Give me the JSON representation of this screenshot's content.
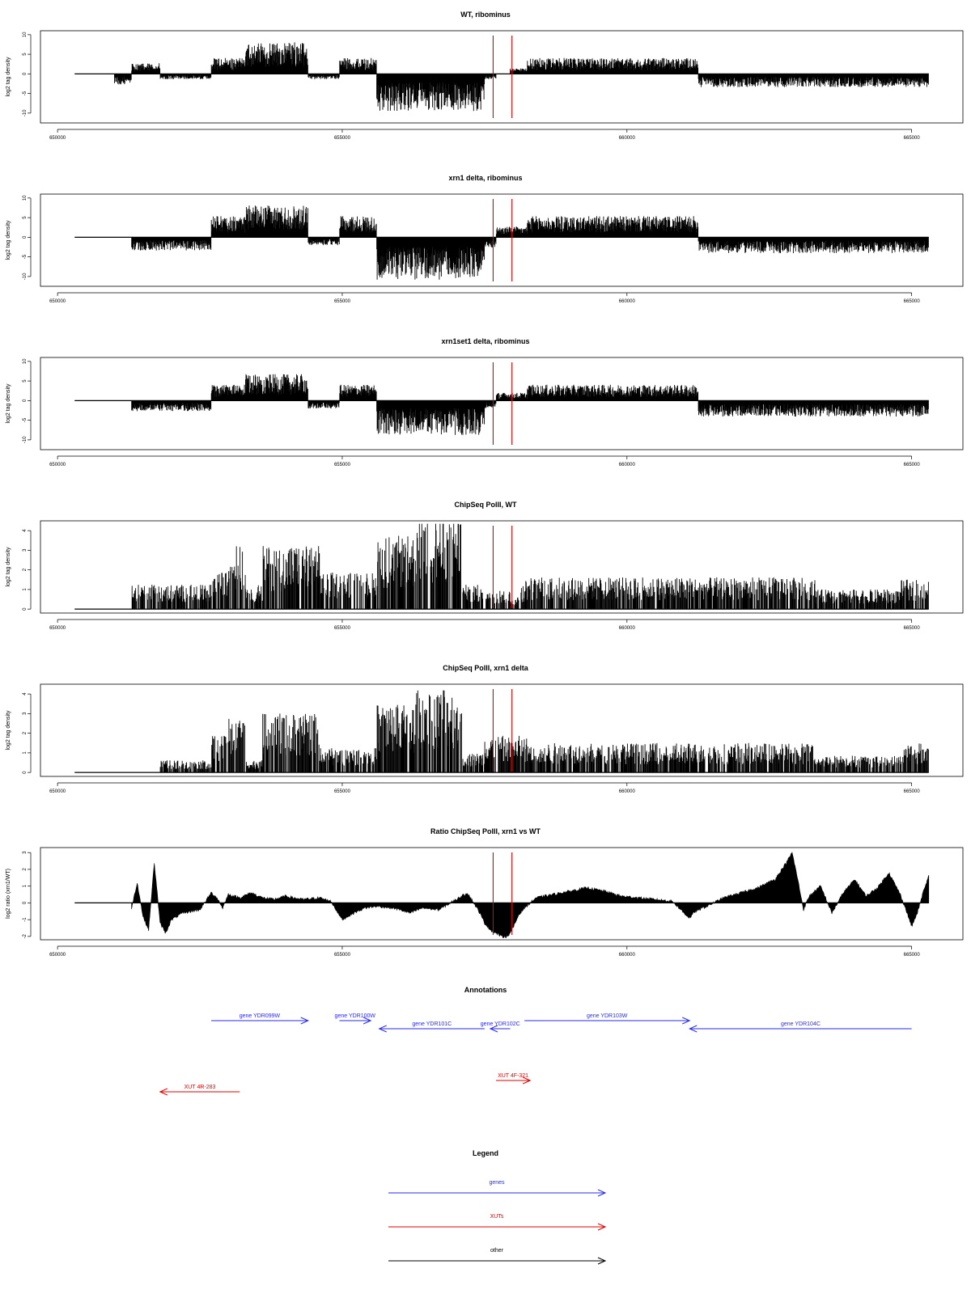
{
  "figure": {
    "xaxis_ticks": [
      "650000",
      "655000",
      "660000",
      "665000"
    ],
    "xaxis_tick_values": [
      650000,
      655000,
      660000,
      665000
    ],
    "xlim": [
      649700,
      665900
    ],
    "data_range": [
      650300,
      665300
    ],
    "marker_lines_x": [
      657650,
      657980
    ],
    "marker_color": "#e00000",
    "bar_color": "#000000",
    "gene_color": "#2a2aee",
    "xut_color": "#e00000",
    "other_color": "#000000"
  },
  "chart_data": [
    {
      "type": "bar",
      "title": "WT, ribominus",
      "ylabel": "log2 tag density",
      "ylim": [
        -12.5,
        11
      ],
      "yticks": [
        -10,
        -5,
        0,
        5,
        10
      ],
      "ytick_labels": [
        "-10",
        "-5",
        "0",
        "5",
        "10"
      ],
      "baseline": 0,
      "signal_profile": {
        "x_start": [
          650300,
          651000,
          651300,
          651800,
          652700,
          653300,
          654400,
          654950,
          655600,
          657500,
          657700,
          657950,
          658250,
          661250,
          665300
        ],
        "x_end": [
          651000,
          651300,
          651800,
          652700,
          653300,
          654400,
          654950,
          655600,
          657500,
          657700,
          657950,
          658250,
          661250,
          665300,
          665300
        ],
        "values": [
          0,
          -2,
          2,
          -1,
          3,
          6,
          -1,
          3,
          -7,
          -1,
          0,
          1,
          3,
          -2.5,
          0
        ]
      }
    },
    {
      "type": "bar",
      "title": "xrn1 delta, ribominus",
      "ylabel": "log2 tag density",
      "ylim": [
        -12.5,
        11
      ],
      "yticks": [
        -10,
        -5,
        0,
        5,
        10
      ],
      "ytick_labels": [
        "-10",
        "-5",
        "0",
        "5",
        "10"
      ],
      "baseline": 0,
      "signal_profile": {
        "x_start": [
          650300,
          651300,
          652700,
          653300,
          654400,
          654950,
          655600,
          657500,
          657700,
          658250,
          661250
        ],
        "x_end": [
          651300,
          652700,
          653300,
          654400,
          654950,
          655600,
          657500,
          657700,
          658250,
          661250,
          665300
        ],
        "values": [
          0,
          -2.5,
          4,
          6,
          -1.5,
          4,
          -8,
          -2,
          2,
          4,
          -3
        ]
      }
    },
    {
      "type": "bar",
      "title": "xrn1set1 delta, ribominus",
      "ylabel": "log2 tag density",
      "ylim": [
        -12.5,
        11
      ],
      "yticks": [
        -10,
        -5,
        0,
        5,
        10
      ],
      "ytick_labels": [
        "-10",
        "-5",
        "0",
        "5",
        "10"
      ],
      "baseline": 0,
      "signal_profile": {
        "x_start": [
          650300,
          651300,
          652700,
          653300,
          654400,
          654950,
          655600,
          657500,
          657700,
          658250,
          661250
        ],
        "x_end": [
          651300,
          652700,
          653300,
          654400,
          654950,
          655600,
          657500,
          657700,
          658250,
          661250,
          665300
        ],
        "values": [
          0,
          -2,
          3,
          5,
          -1.5,
          3,
          -6.5,
          -1.5,
          1.5,
          3,
          -3
        ]
      }
    },
    {
      "type": "bar",
      "title": "ChipSeq PolII, WT",
      "ylabel": "log2 tag density",
      "ylim": [
        -0.2,
        4.5
      ],
      "yticks": [
        0,
        1,
        2,
        3,
        4
      ],
      "ytick_labels": [
        "0",
        "1",
        "2",
        "3",
        "4"
      ],
      "baseline": 0,
      "signal_profile": {
        "x_start": [
          650300,
          651300,
          651800,
          652700,
          653000,
          653300,
          653600,
          654600,
          655600,
          656300,
          657100,
          657500,
          657950,
          658100,
          658200,
          663300,
          664800
        ],
        "x_end": [
          651300,
          651800,
          652700,
          653000,
          653300,
          653600,
          654600,
          655600,
          656300,
          657100,
          657500,
          657950,
          658100,
          658200,
          663300,
          664800,
          665300
        ],
        "values": [
          0,
          1,
          1,
          1.5,
          2.6,
          1,
          2.6,
          1.5,
          3,
          3.8,
          1,
          0.8,
          0.5,
          1,
          1.3,
          0.8,
          1.2
        ]
      }
    },
    {
      "type": "bar",
      "title": "ChipSeq PolII, xrn1 delta",
      "ylabel": "log2 tag density",
      "ylim": [
        -0.2,
        4.5
      ],
      "yticks": [
        0,
        1,
        2,
        3,
        4
      ],
      "ytick_labels": [
        "0",
        "1",
        "2",
        "3",
        "4"
      ],
      "baseline": 0,
      "signal_profile": {
        "x_start": [
          650300,
          651800,
          652700,
          653000,
          653300,
          653600,
          654600,
          655600,
          656300,
          657100,
          657500,
          658250,
          663300,
          664800
        ],
        "x_end": [
          651800,
          652700,
          653000,
          653300,
          653600,
          654600,
          655600,
          656300,
          657100,
          657500,
          658250,
          663300,
          664800,
          665300
        ],
        "values": [
          0,
          0.5,
          1.5,
          2.2,
          0.5,
          2.4,
          1,
          2.8,
          3.4,
          0.8,
          1.5,
          1.2,
          0.7,
          1.2
        ]
      }
    },
    {
      "type": "area",
      "title": "Ratio ChipSeq PolII, xrn1 vs WT",
      "ylabel": "log2 ratio (xrn1/WT)",
      "ylim": [
        -2.2,
        3.3
      ],
      "yticks": [
        -2,
        -1,
        0,
        1,
        2,
        3
      ],
      "ytick_labels": [
        "-2",
        "-1",
        "0",
        "1",
        "2",
        "3"
      ],
      "baseline": 0,
      "x": [
        651300,
        651400,
        651500,
        651600,
        651700,
        651800,
        651900,
        652000,
        652200,
        652500,
        652700,
        652800,
        652900,
        653000,
        653200,
        653400,
        653600,
        653800,
        654000,
        654300,
        654600,
        654800,
        655000,
        655200,
        655400,
        655600,
        655900,
        656200,
        656400,
        656700,
        657000,
        657200,
        657400,
        657500,
        657600,
        657700,
        657800,
        657900,
        658000,
        658100,
        658200,
        658400,
        658700,
        659000,
        659300,
        659600,
        659900,
        660200,
        660500,
        660800,
        661000,
        661100,
        661200,
        661400,
        661700,
        662000,
        662300,
        662600,
        662800,
        662900,
        663000,
        663100,
        663200,
        663400,
        663600,
        663800,
        664000,
        664200,
        664400,
        664600,
        664800,
        664900,
        665000,
        665100,
        665200,
        665300
      ],
      "values": [
        -0.3,
        1.2,
        -0.8,
        -1.6,
        2.4,
        -1.2,
        -1.8,
        -1,
        -0.6,
        -0.4,
        0.6,
        0.3,
        -0.3,
        0.5,
        0.3,
        0.6,
        0.3,
        0.2,
        0.4,
        0.2,
        0.3,
        0.1,
        -1,
        -0.6,
        -0.3,
        -0.2,
        -0.3,
        -0.6,
        -0.3,
        -0.4,
        0.2,
        0.6,
        -0.5,
        -1.2,
        -1.6,
        -1.8,
        -2,
        -2,
        -1.5,
        -0.7,
        -0.3,
        0.3,
        0.5,
        0.7,
        0.9,
        0.7,
        0.4,
        0.3,
        0.2,
        0.1,
        -0.6,
        -0.9,
        -0.5,
        -0.2,
        0.3,
        0.6,
        0.9,
        1.4,
        2.4,
        3,
        1.4,
        -0.4,
        0.4,
        1,
        -0.6,
        0.6,
        1.4,
        0.4,
        0.9,
        1.8,
        0.5,
        -0.4,
        -1.4,
        -0.6,
        0.6,
        1.6
      ]
    }
  ],
  "annotations": {
    "title": "Annotations",
    "genes": [
      {
        "label": "gene YDR099W",
        "start": 652700,
        "end": 654400,
        "strand": "+",
        "row": 0
      },
      {
        "label": "gene YDR100W",
        "start": 654950,
        "end": 655500,
        "strand": "+",
        "row": 0
      },
      {
        "label": "gene YDR101C",
        "start": 655650,
        "end": 657500,
        "strand": "-",
        "row": 1
      },
      {
        "label": "gene YDR102C",
        "start": 657600,
        "end": 657950,
        "strand": "-",
        "row": 1
      },
      {
        "label": "gene YDR103W",
        "start": 658200,
        "end": 661100,
        "strand": "+",
        "row": 0
      },
      {
        "label": "gene YDR104C",
        "start": 661100,
        "end": 665000,
        "strand": "-",
        "row": 1
      }
    ],
    "xuts": [
      {
        "label": "XUT 4R-283",
        "start": 651800,
        "end": 653200,
        "strand": "-",
        "row": 3
      },
      {
        "label": "XUT 4F-321",
        "start": 657700,
        "end": 658300,
        "strand": "+",
        "row": 2
      }
    ]
  },
  "legend": {
    "title": "Legend",
    "items": [
      {
        "label": "genes",
        "color": "#2a2aee"
      },
      {
        "label": "XUTs",
        "color": "#e00000"
      },
      {
        "label": "other",
        "color": "#000000"
      }
    ]
  }
}
